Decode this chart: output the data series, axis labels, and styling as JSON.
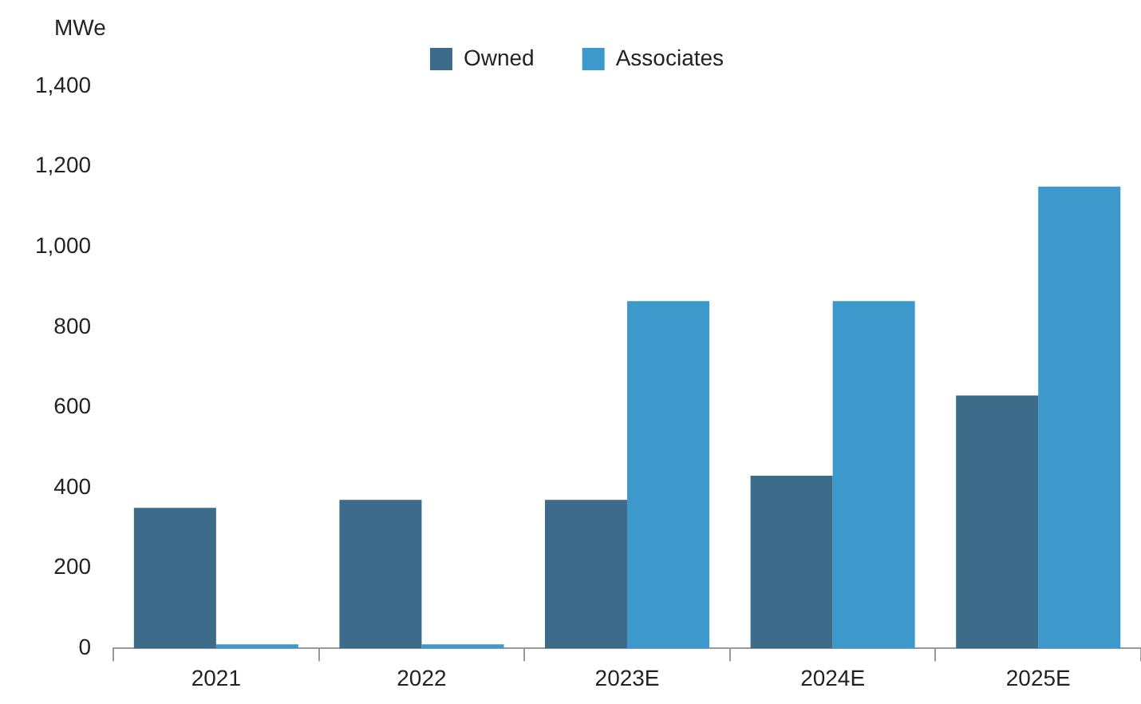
{
  "chart_data": {
    "type": "bar",
    "ylabel": "MWe",
    "categories": [
      "2021",
      "2022",
      "2023E",
      "2024E",
      "2025E"
    ],
    "series": [
      {
        "name": "Owned",
        "color": "#3d6b8a",
        "values": [
          350,
          370,
          370,
          430,
          630
        ]
      },
      {
        "name": "Associates",
        "color": "#3d99cc",
        "values": [
          10,
          10,
          865,
          865,
          1150
        ]
      }
    ],
    "ylim": [
      0,
      1400
    ],
    "yticks": [
      0,
      200,
      400,
      600,
      800,
      {
        "value": 1000,
        "label": "1,000"
      },
      {
        "value": 1200,
        "label": "1,200"
      },
      {
        "value": 1400,
        "label": "1,400"
      }
    ],
    "grid": false,
    "legend": "top"
  }
}
